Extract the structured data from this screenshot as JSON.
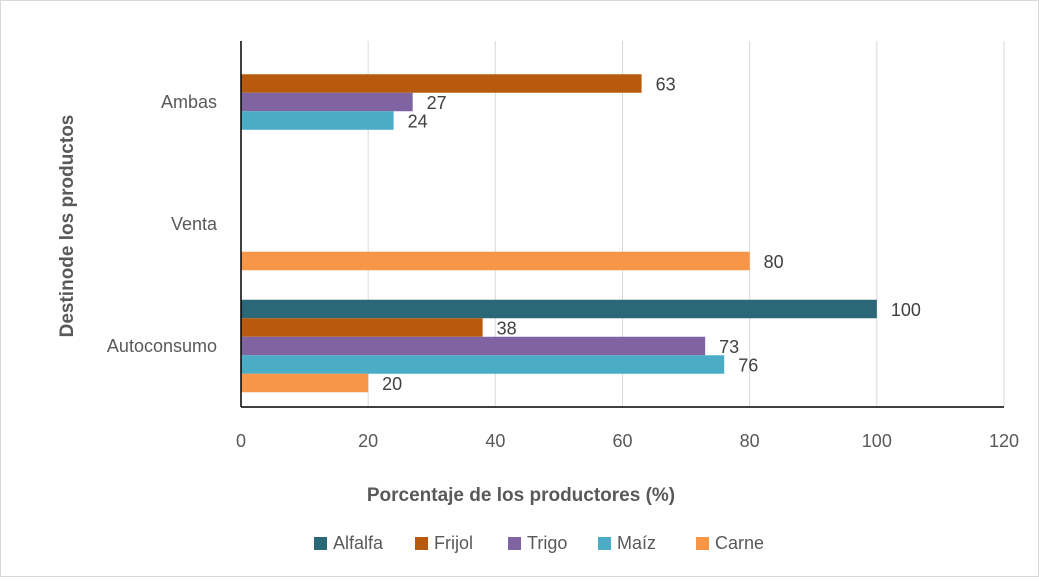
{
  "chart_data": {
    "type": "bar",
    "orientation": "horizontal",
    "categories": [
      "Ambas",
      "Venta",
      "Autoconsumo"
    ],
    "series": [
      {
        "name": "Alfalfa",
        "color": "#2a6777",
        "values": [
          null,
          null,
          100
        ]
      },
      {
        "name": "Frijol",
        "color": "#b85a0d",
        "values": [
          63,
          null,
          38
        ]
      },
      {
        "name": "Trigo",
        "color": "#8064a2",
        "values": [
          27,
          null,
          73
        ]
      },
      {
        "name": "Maíz",
        "color": "#4bacc6",
        "values": [
          24,
          null,
          76
        ]
      },
      {
        "name": "Carne",
        "color": "#f79646",
        "values": [
          null,
          80,
          20
        ]
      }
    ],
    "xlabel": "Porcentaje de los productores (%)",
    "ylabel": "Destinode los productos",
    "xlim": [
      0,
      120
    ],
    "xticks": [
      0,
      20,
      40,
      60,
      80,
      100,
      120
    ],
    "grid": true,
    "legend": "bottom"
  }
}
